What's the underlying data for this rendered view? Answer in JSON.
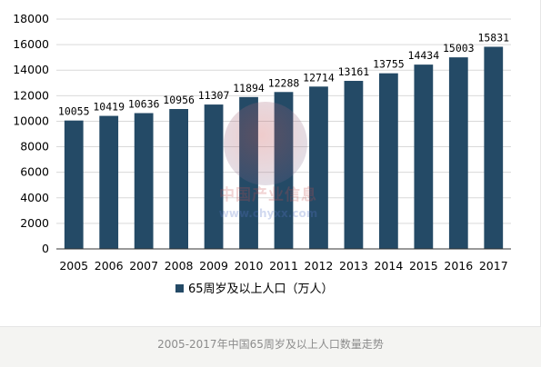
{
  "caption": "2005-2017年中国65周岁及以上人口数量走势",
  "watermark": {
    "name": "中国产业信息",
    "url": "www.chyxx.com"
  },
  "colors": {
    "bar": "#244a66",
    "grid": "#d9d9d9",
    "axis": "#333333",
    "text": "#000000"
  },
  "chart_data": {
    "type": "bar",
    "categories": [
      "2005",
      "2006",
      "2007",
      "2008",
      "2009",
      "2010",
      "2011",
      "2012",
      "2013",
      "2014",
      "2015",
      "2016",
      "2017"
    ],
    "series": [
      {
        "name": "65周岁及以上人口（万人）",
        "values": [
          10055,
          10419,
          10636,
          10956,
          11307,
          11894,
          12288,
          12714,
          13161,
          13755,
          14434,
          15003,
          15831
        ]
      }
    ],
    "ylim": [
      0,
      18000
    ],
    "yticks": [
      "0",
      "2000",
      "4000",
      "6000",
      "8000",
      "10000",
      "12000",
      "14000",
      "16000",
      "18000"
    ],
    "grid": true,
    "legend": "bottom-center",
    "data_labels": true
  }
}
